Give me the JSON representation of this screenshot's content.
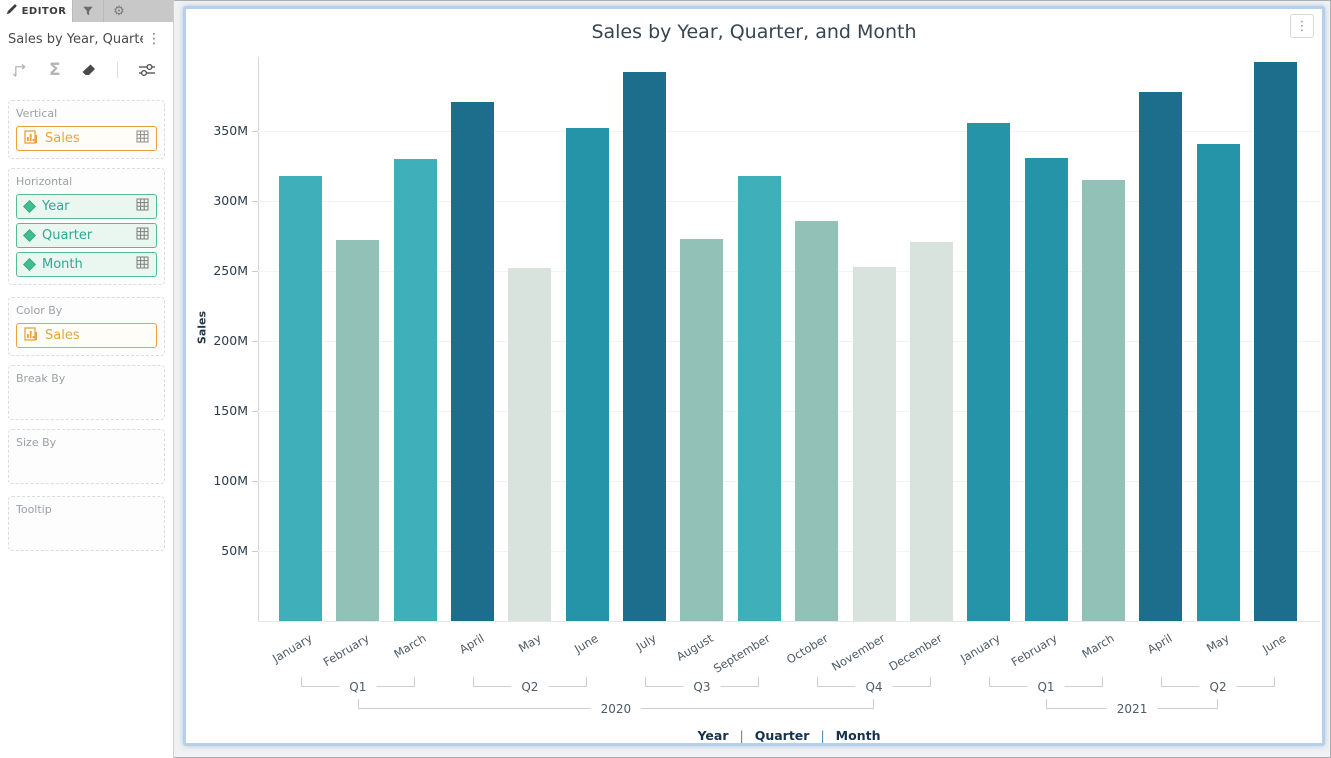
{
  "icons": {
    "gear": "⚙",
    "kebab": "⋮",
    "sigma": "Σ"
  },
  "sidebar": {
    "tabs": {
      "editor_label": "EDITOR"
    },
    "widget_title": "Sales by Year, Quarter...",
    "panels": {
      "vertical": {
        "label": "Vertical",
        "pills": [
          {
            "label": "Sales"
          }
        ]
      },
      "horizontal": {
        "label": "Horizontal",
        "pills": [
          {
            "label": "Year"
          },
          {
            "label": "Quarter"
          },
          {
            "label": "Month"
          }
        ]
      },
      "color_by": {
        "label": "Color By",
        "pills": [
          {
            "label": "Sales"
          }
        ]
      },
      "break_by": {
        "label": "Break By",
        "pills": []
      },
      "size_by": {
        "label": "Size By",
        "pills": []
      },
      "tooltip": {
        "label": "Tooltip",
        "pills": []
      }
    }
  },
  "chart_data": {
    "type": "bar",
    "title": "Sales by Year, Quarter, and Month",
    "xlabel": "",
    "ylabel": "Sales",
    "ylim_millions": [
      0,
      400
    ],
    "grid": true,
    "y_ticks": [
      {
        "value": 50,
        "label": "50M"
      },
      {
        "value": 100,
        "label": "100M"
      },
      {
        "value": 150,
        "label": "150M"
      },
      {
        "value": 200,
        "label": "200M"
      },
      {
        "value": 250,
        "label": "250M"
      },
      {
        "value": 300,
        "label": "300M"
      },
      {
        "value": 350,
        "label": "350M"
      }
    ],
    "categories": [
      "January",
      "February",
      "March",
      "April",
      "May",
      "June",
      "July",
      "August",
      "September",
      "October",
      "November",
      "December",
      "January",
      "February",
      "March",
      "April",
      "May",
      "June"
    ],
    "values_millions": [
      318,
      272,
      330,
      371,
      252,
      352,
      392,
      273,
      318,
      286,
      253,
      271,
      356,
      331,
      315,
      378,
      341,
      399
    ],
    "bar_colors": [
      "#3fb0ba",
      "#92c1b8",
      "#3fb0ba",
      "#1d6e8c",
      "#d9e3de",
      "#2694a8",
      "#1d6e8c",
      "#92c1b8",
      "#3fb0ba",
      "#92c1b8",
      "#d9e3de",
      "#d9e3de",
      "#2694a8",
      "#2694a8",
      "#92c1b8",
      "#1d6e8c",
      "#2694a8",
      "#1d6e8c"
    ],
    "quarter_groups": [
      {
        "label": "Q1",
        "from": 0,
        "to": 2
      },
      {
        "label": "Q2",
        "from": 3,
        "to": 5
      },
      {
        "label": "Q3",
        "from": 6,
        "to": 8
      },
      {
        "label": "Q4",
        "from": 9,
        "to": 11
      },
      {
        "label": "Q1",
        "from": 12,
        "to": 14
      },
      {
        "label": "Q2",
        "from": 15,
        "to": 17
      }
    ],
    "year_groups": [
      {
        "label": "2020",
        "from_quarter": 0,
        "to_quarter": 3
      },
      {
        "label": "2021",
        "from_quarter": 4,
        "to_quarter": 5
      }
    ],
    "legend": [
      "Year",
      "Quarter",
      "Month"
    ],
    "legend_separator": "|",
    "legend_position": "bottom"
  },
  "colors": {
    "accent_orange": "#e8a23c",
    "accent_green": "#58bb96",
    "bar_dark": "#1d6e8c",
    "bar_medium": "#2694a8",
    "bar_teal": "#3fb0ba",
    "bar_sage": "#92c1b8",
    "bar_pale": "#d9e3de",
    "focus_border": "#b5d0ec"
  }
}
